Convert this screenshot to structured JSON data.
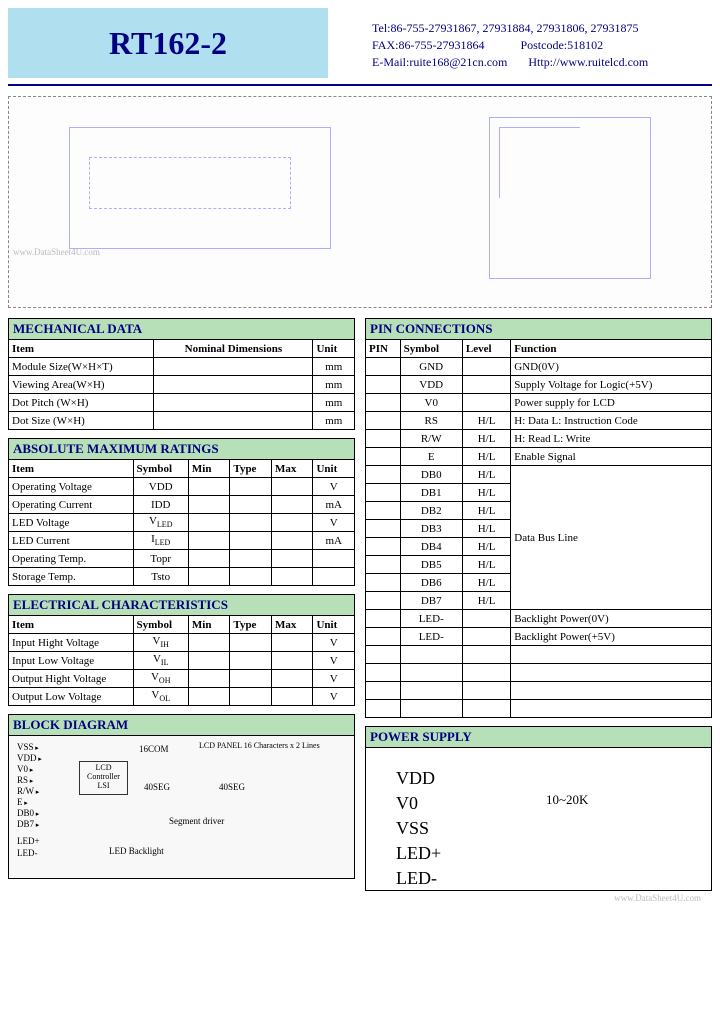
{
  "header": {
    "title": "RT162-2",
    "tel": "Tel:86-755-27931867, 27931884, 27931806, 27931875",
    "fax": "FAX:86-755-27931864",
    "postcode": "Postcode:518102",
    "email": "E-Mail:ruite168@21cn.com",
    "web": "Http://www.ruitelcd.com"
  },
  "mech": {
    "title": "MECHANICAL  DATA",
    "h_item": "Item",
    "h_dim": "Nominal  Dimensions",
    "h_unit": "Unit",
    "rows": [
      {
        "item": "Module Size(W×H×T)",
        "unit": "mm"
      },
      {
        "item": "Viewing  Area(W×H)",
        "unit": "mm"
      },
      {
        "item": "Dot Pitch (W×H)",
        "unit": "mm"
      },
      {
        "item": "Dot Size  (W×H)",
        "unit": "mm"
      }
    ]
  },
  "abs": {
    "title": "ABSOLUTE  MAXIMUM  RATINGS",
    "h_item": "Item",
    "h_sym": "Symbol",
    "h_min": "Min",
    "h_type": "Type",
    "h_max": "Max",
    "h_unit": "Unit",
    "rows": [
      {
        "item": "Operating  Voltage",
        "sym": "VDD",
        "unit": "V"
      },
      {
        "item": "Operating  Current",
        "sym": "IDD",
        "unit": "mA"
      },
      {
        "item": "LED  Voltage",
        "sym": "V",
        "sub": "LED",
        "unit": "V"
      },
      {
        "item": "LED  Current",
        "sym": "I",
        "sub": "LED",
        "unit": "mA"
      },
      {
        "item": "Operating  Temp.",
        "sym": "Topr",
        "unit": ""
      },
      {
        "item": "Storage  Temp.",
        "sym": "Tsto",
        "unit": ""
      }
    ]
  },
  "elec": {
    "title": "ELECTRICAL  CHARACTERISTICS",
    "h_item": "Item",
    "h_sym": "Symbol",
    "h_min": "Min",
    "h_type": "Type",
    "h_max": "Max",
    "h_unit": "Unit",
    "rows": [
      {
        "item": "Input Hight Voltage",
        "sym": "V",
        "sub": "IH",
        "unit": "V"
      },
      {
        "item": "Input  Low  Voltage",
        "sym": "V",
        "sub": "IL",
        "unit": "V"
      },
      {
        "item": "Output Hight Voltage",
        "sym": "V",
        "sub": "OH",
        "unit": "V"
      },
      {
        "item": "Output Low Voltage",
        "sym": "V",
        "sub": "OL",
        "unit": "V"
      }
    ]
  },
  "pin": {
    "title": "PIN  CONNECTIONS",
    "h_pin": "PIN",
    "h_sym": "Symbol",
    "h_lvl": "Level",
    "h_func": "Function",
    "rows": [
      {
        "sym": "GND",
        "lvl": "",
        "func": "GND(0V)"
      },
      {
        "sym": "VDD",
        "lvl": "",
        "func": "Supply Voltage for Logic(+5V)"
      },
      {
        "sym": "V0",
        "lvl": "",
        "func": "Power supply for LCD"
      },
      {
        "sym": "RS",
        "lvl": "H/L",
        "func": "H: Data     L: Instruction Code"
      },
      {
        "sym": "R/W",
        "lvl": "H/L",
        "func": "H: Read    L: Write"
      },
      {
        "sym": "E",
        "lvl": "H/L",
        "func": "Enable Signal"
      },
      {
        "sym": "DB0",
        "lvl": "H/L"
      },
      {
        "sym": "DB1",
        "lvl": "H/L"
      },
      {
        "sym": "DB2",
        "lvl": "H/L"
      },
      {
        "sym": "DB3",
        "lvl": "H/L"
      },
      {
        "sym": "DB4",
        "lvl": "H/L"
      },
      {
        "sym": "DB5",
        "lvl": "H/L"
      },
      {
        "sym": "DB6",
        "lvl": "H/L"
      },
      {
        "sym": "DB7",
        "lvl": "H/L"
      },
      {
        "sym": "LED-",
        "lvl": "",
        "func": "Backlight Power(0V)"
      },
      {
        "sym": "LED-",
        "lvl": "",
        "func": "Backlight Power(+5V)"
      }
    ],
    "databus": "Data Bus Line"
  },
  "block": {
    "title": "BLOCK  DIAGRAM",
    "sigs": [
      "VSS",
      "VDD",
      "V0",
      "RS",
      "R/W",
      "E",
      "DB0",
      "DB7"
    ],
    "led_sigs": [
      "LED+",
      "LED-"
    ],
    "lcd_ctrl": "LCD\nController\nLSI",
    "com16": "16COM",
    "panel": "LCD PANEL\n16 Characters x 2 Lines",
    "seg1": "40SEG",
    "seg2": "40SEG",
    "segdrv": "Segment driver",
    "ledbk": "LED Backlight"
  },
  "power": {
    "title": "POWER  SUPPLY",
    "lines": [
      "VDD",
      "V0",
      "VSS",
      "LED+",
      "LED-"
    ],
    "resistor": "10~20K"
  },
  "watermark1": "www.DataSheet4U.com",
  "watermark2": "www.DataSheet4U.com"
}
